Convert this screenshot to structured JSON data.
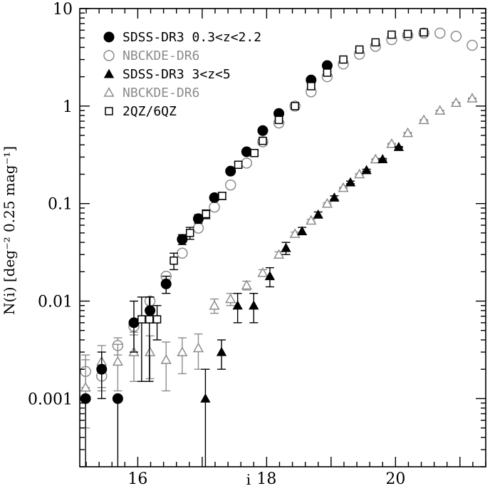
{
  "chart_data": {
    "type": "scatter",
    "xlabel": "i",
    "ylabel": "N(i) [deg⁻² 0.25 mag⁻¹]",
    "xlim": [
      15.1,
      21.4
    ],
    "ylim": [
      0.0002,
      10
    ],
    "yscale": "log",
    "x_ticks": [
      16,
      18,
      20
    ],
    "x_tick_labels": [
      "16",
      "18",
      "20"
    ],
    "y_ticks": [
      0.001,
      0.01,
      0.1,
      1,
      10
    ],
    "y_tick_labels": [
      "0.001",
      "0.01",
      "0.1",
      "1",
      "10"
    ],
    "legend_position": "top-left",
    "series": [
      {
        "name": "SDSS-DR3 0.3<z<2.2",
        "marker": "filled-circle",
        "color": "#000000",
        "points": [
          {
            "x": 15.19,
            "y": 0.001,
            "lo": 0.0002,
            "hi": 0.001
          },
          {
            "x": 15.44,
            "y": 0.002,
            "lo": 0.001,
            "hi": 0.003
          },
          {
            "x": 15.69,
            "y": 0.001,
            "lo": 0.0002,
            "hi": 0.001
          },
          {
            "x": 15.94,
            "y": 0.006,
            "lo": 0.003,
            "hi": 0.01
          },
          {
            "x": 16.19,
            "y": 0.008,
            "lo": 0.006,
            "hi": 0.011
          },
          {
            "x": 16.44,
            "y": 0.015,
            "lo": 0.012,
            "hi": 0.018
          },
          {
            "x": 16.69,
            "y": 0.043,
            "lo": 0.038,
            "hi": 0.048
          },
          {
            "x": 16.94,
            "y": 0.07,
            "lo": 0.063,
            "hi": 0.077
          },
          {
            "x": 17.19,
            "y": 0.115,
            "lo": 0.11,
            "hi": 0.12
          },
          {
            "x": 17.44,
            "y": 0.215,
            "lo": 0.205,
            "hi": 0.225
          },
          {
            "x": 17.69,
            "y": 0.34,
            "lo": 0.33,
            "hi": 0.35
          },
          {
            "x": 17.94,
            "y": 0.56,
            "lo": 0.55,
            "hi": 0.57
          },
          {
            "x": 18.19,
            "y": 0.84,
            "lo": 0.83,
            "hi": 0.85
          },
          {
            "x": 18.69,
            "y": 1.85,
            "lo": 1.83,
            "hi": 1.87
          },
          {
            "x": 18.94,
            "y": 2.6,
            "lo": 2.58,
            "hi": 2.62
          }
        ]
      },
      {
        "name": "NBCKDE-DR6",
        "marker": "open-circle",
        "color": "#8c8c8c",
        "points": [
          {
            "x": 15.19,
            "y": 0.0019,
            "lo": 0.0013,
            "hi": 0.0025
          },
          {
            "x": 15.44,
            "y": 0.0017,
            "lo": 0.0012,
            "hi": 0.0022
          },
          {
            "x": 15.69,
            "y": 0.0035,
            "lo": 0.0028,
            "hi": 0.0042
          },
          {
            "x": 15.94,
            "y": 0.0055,
            "lo": 0.0048,
            "hi": 0.0062
          },
          {
            "x": 16.19,
            "y": 0.01,
            "lo": 0.0093,
            "hi": 0.0107
          },
          {
            "x": 16.44,
            "y": 0.018,
            "lo": 0.017,
            "hi": 0.019
          },
          {
            "x": 16.69,
            "y": 0.031,
            "lo": 0.029,
            "hi": 0.033
          },
          {
            "x": 16.94,
            "y": 0.056,
            "lo": 0.054,
            "hi": 0.058
          },
          {
            "x": 17.19,
            "y": 0.092,
            "lo": 0.09,
            "hi": 0.094
          },
          {
            "x": 17.44,
            "y": 0.155,
            "lo": 0.153,
            "hi": 0.157
          },
          {
            "x": 17.69,
            "y": 0.26,
            "lo": 0.257,
            "hi": 0.263
          },
          {
            "x": 17.94,
            "y": 0.43,
            "lo": 0.426,
            "hi": 0.434
          },
          {
            "x": 18.19,
            "y": 0.67,
            "lo": 0.665,
            "hi": 0.675
          },
          {
            "x": 18.44,
            "y": 1.0,
            "lo": 0.99,
            "hi": 1.01
          },
          {
            "x": 18.69,
            "y": 1.4,
            "lo": 1.39,
            "hi": 1.41
          },
          {
            "x": 18.94,
            "y": 2.0,
            "lo": 1.98,
            "hi": 2.02
          },
          {
            "x": 19.19,
            "y": 2.7,
            "lo": 2.68,
            "hi": 2.72
          },
          {
            "x": 19.44,
            "y": 3.4,
            "lo": 3.38,
            "hi": 3.42
          },
          {
            "x": 19.69,
            "y": 4.1,
            "lo": 4.08,
            "hi": 4.12
          },
          {
            "x": 19.94,
            "y": 4.8,
            "lo": 4.77,
            "hi": 4.83
          },
          {
            "x": 20.19,
            "y": 5.3,
            "lo": 5.27,
            "hi": 5.33
          },
          {
            "x": 20.44,
            "y": 5.6,
            "lo": 5.57,
            "hi": 5.63
          },
          {
            "x": 20.69,
            "y": 5.6,
            "lo": 5.57,
            "hi": 5.63
          },
          {
            "x": 20.94,
            "y": 5.2,
            "lo": 5.17,
            "hi": 5.23
          },
          {
            "x": 21.19,
            "y": 4.2,
            "lo": 4.17,
            "hi": 4.23
          }
        ]
      },
      {
        "name": "SDSS-DR3 3<z<5",
        "marker": "filled-triangle",
        "color": "#000000",
        "points": [
          {
            "x": 17.05,
            "y": 0.001,
            "lo": 0.0002,
            "hi": 0.002
          },
          {
            "x": 17.3,
            "y": 0.003,
            "lo": 0.002,
            "hi": 0.004
          },
          {
            "x": 17.55,
            "y": 0.009,
            "lo": 0.006,
            "hi": 0.012
          },
          {
            "x": 17.8,
            "y": 0.009,
            "lo": 0.006,
            "hi": 0.012
          },
          {
            "x": 18.05,
            "y": 0.018,
            "lo": 0.014,
            "hi": 0.022
          },
          {
            "x": 18.3,
            "y": 0.035,
            "lo": 0.03,
            "hi": 0.04
          },
          {
            "x": 18.55,
            "y": 0.052,
            "lo": 0.048,
            "hi": 0.057
          },
          {
            "x": 18.8,
            "y": 0.077,
            "lo": 0.072,
            "hi": 0.082
          },
          {
            "x": 19.05,
            "y": 0.115,
            "lo": 0.11,
            "hi": 0.12
          },
          {
            "x": 19.3,
            "y": 0.165,
            "lo": 0.16,
            "hi": 0.17
          },
          {
            "x": 19.55,
            "y": 0.22,
            "lo": 0.215,
            "hi": 0.225
          },
          {
            "x": 19.8,
            "y": 0.285,
            "lo": 0.28,
            "hi": 0.29
          },
          {
            "x": 20.05,
            "y": 0.38,
            "lo": 0.375,
            "hi": 0.385
          }
        ]
      },
      {
        "name": "NBCKDE-DR6",
        "marker": "open-triangle",
        "color": "#8c8c8c",
        "points": [
          {
            "x": 15.19,
            "y": 0.0013,
            "lo": 0.0005,
            "hi": 0.0028
          },
          {
            "x": 15.44,
            "y": 0.0024,
            "lo": 0.0013,
            "hi": 0.0035
          },
          {
            "x": 15.69,
            "y": 0.0024,
            "lo": 0.0012,
            "hi": 0.0036
          },
          {
            "x": 15.94,
            "y": 0.003,
            "lo": 0.0015,
            "hi": 0.0045
          },
          {
            "x": 16.19,
            "y": 0.003,
            "lo": 0.0016,
            "hi": 0.0044
          },
          {
            "x": 16.44,
            "y": 0.0025,
            "lo": 0.0012,
            "hi": 0.0038
          },
          {
            "x": 16.69,
            "y": 0.003,
            "lo": 0.0018,
            "hi": 0.0042
          },
          {
            "x": 16.94,
            "y": 0.0033,
            "lo": 0.002,
            "hi": 0.0046
          },
          {
            "x": 17.19,
            "y": 0.009,
            "lo": 0.0075,
            "hi": 0.0105
          },
          {
            "x": 17.44,
            "y": 0.0105,
            "lo": 0.009,
            "hi": 0.012
          },
          {
            "x": 17.69,
            "y": 0.0145,
            "lo": 0.013,
            "hi": 0.016
          },
          {
            "x": 17.94,
            "y": 0.0195,
            "lo": 0.018,
            "hi": 0.021
          },
          {
            "x": 18.19,
            "y": 0.03,
            "lo": 0.028,
            "hi": 0.032
          },
          {
            "x": 18.44,
            "y": 0.049,
            "lo": 0.047,
            "hi": 0.051
          },
          {
            "x": 18.69,
            "y": 0.067,
            "lo": 0.065,
            "hi": 0.069
          },
          {
            "x": 18.94,
            "y": 0.1,
            "lo": 0.098,
            "hi": 0.102
          },
          {
            "x": 19.19,
            "y": 0.145,
            "lo": 0.143,
            "hi": 0.147
          },
          {
            "x": 19.44,
            "y": 0.2,
            "lo": 0.197,
            "hi": 0.203
          },
          {
            "x": 19.69,
            "y": 0.285,
            "lo": 0.282,
            "hi": 0.288
          },
          {
            "x": 19.94,
            "y": 0.41,
            "lo": 0.406,
            "hi": 0.414
          },
          {
            "x": 20.19,
            "y": 0.53,
            "lo": 0.525,
            "hi": 0.535
          },
          {
            "x": 20.44,
            "y": 0.72,
            "lo": 0.715,
            "hi": 0.725
          },
          {
            "x": 20.69,
            "y": 0.9,
            "lo": 0.895,
            "hi": 0.905
          },
          {
            "x": 20.94,
            "y": 1.08,
            "lo": 1.07,
            "hi": 1.09
          },
          {
            "x": 21.19,
            "y": 1.2,
            "lo": 1.19,
            "hi": 1.21
          }
        ]
      },
      {
        "name": "2QZ/6QZ",
        "marker": "open-square",
        "color": "#000000",
        "points": [
          {
            "x": 16.06,
            "y": 0.0065,
            "lo": 0.0015,
            "hi": 0.011
          },
          {
            "x": 16.18,
            "y": 0.0065,
            "lo": 0.0015,
            "hi": 0.011
          },
          {
            "x": 16.3,
            "y": 0.0065,
            "lo": 0.004,
            "hi": 0.009
          },
          {
            "x": 16.56,
            "y": 0.026,
            "lo": 0.021,
            "hi": 0.031
          },
          {
            "x": 16.81,
            "y": 0.05,
            "lo": 0.043,
            "hi": 0.057
          },
          {
            "x": 17.06,
            "y": 0.078,
            "lo": 0.07,
            "hi": 0.086
          },
          {
            "x": 17.31,
            "y": 0.12,
            "lo": 0.11,
            "hi": 0.13
          },
          {
            "x": 17.56,
            "y": 0.25,
            "lo": 0.235,
            "hi": 0.265
          },
          {
            "x": 17.81,
            "y": 0.33,
            "lo": 0.31,
            "hi": 0.35
          },
          {
            "x": 17.94,
            "y": 0.44,
            "lo": 0.42,
            "hi": 0.46
          },
          {
            "x": 18.19,
            "y": 0.72,
            "lo": 0.69,
            "hi": 0.75
          },
          {
            "x": 18.44,
            "y": 1.0,
            "lo": 0.96,
            "hi": 1.04
          },
          {
            "x": 18.69,
            "y": 1.6,
            "lo": 1.54,
            "hi": 1.66
          },
          {
            "x": 18.94,
            "y": 2.2,
            "lo": 2.12,
            "hi": 2.28
          },
          {
            "x": 19.19,
            "y": 3.0,
            "lo": 2.9,
            "hi": 3.1
          },
          {
            "x": 19.44,
            "y": 3.8,
            "lo": 3.68,
            "hi": 3.92
          },
          {
            "x": 19.69,
            "y": 4.5,
            "lo": 4.37,
            "hi": 4.63
          },
          {
            "x": 19.94,
            "y": 5.4,
            "lo": 5.25,
            "hi": 5.55
          },
          {
            "x": 20.19,
            "y": 5.5,
            "lo": 5.35,
            "hi": 5.65
          },
          {
            "x": 20.44,
            "y": 5.7,
            "lo": 5.55,
            "hi": 5.85
          }
        ]
      }
    ]
  }
}
